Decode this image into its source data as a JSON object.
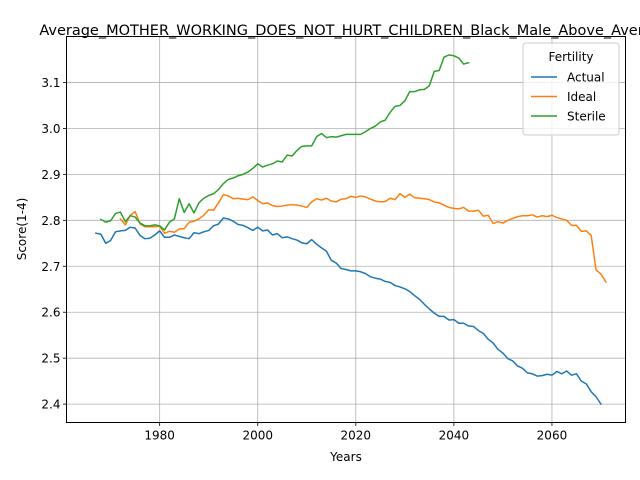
{
  "chart_data": {
    "type": "line",
    "title": "Average_MOTHER_WORKING_DOES_NOT_HURT_CHILDREN_Black_Male_Above_Average",
    "xlabel": "Years",
    "ylabel": "Score(1-4)",
    "xlim": [
      1961,
      2075
    ],
    "ylim": [
      2.36,
      3.2
    ],
    "xticks": [
      1980,
      2000,
      2020,
      2040,
      2060
    ],
    "yticks": [
      2.4,
      2.5,
      2.6,
      2.7,
      2.8,
      2.9,
      3.0,
      3.1
    ],
    "grid": true,
    "legend": {
      "title": "Fertility",
      "position": "top-right"
    },
    "series": [
      {
        "name": "Actual",
        "color": "#1f77b4",
        "points": [
          [
            1967,
            2.772
          ],
          [
            1968,
            2.77
          ],
          [
            1969,
            2.75
          ],
          [
            1970,
            2.756
          ],
          [
            1971,
            2.775
          ],
          [
            1972,
            2.777
          ],
          [
            1973,
            2.778
          ],
          [
            1974,
            2.785
          ],
          [
            1975,
            2.783
          ],
          [
            1976,
            2.767
          ],
          [
            1977,
            2.76
          ],
          [
            1978,
            2.761
          ],
          [
            1979,
            2.768
          ],
          [
            1980,
            2.777
          ],
          [
            1981,
            2.763
          ],
          [
            1982,
            2.763
          ],
          [
            1983,
            2.768
          ],
          [
            1984,
            2.765
          ],
          [
            1985,
            2.762
          ],
          [
            1986,
            2.76
          ],
          [
            1987,
            2.773
          ],
          [
            1988,
            2.771
          ],
          [
            1989,
            2.775
          ],
          [
            1990,
            2.778
          ],
          [
            1991,
            2.788
          ],
          [
            1992,
            2.792
          ],
          [
            1993,
            2.805
          ],
          [
            1994,
            2.803
          ],
          [
            1995,
            2.798
          ],
          [
            1996,
            2.791
          ],
          [
            1997,
            2.789
          ],
          [
            1998,
            2.784
          ],
          [
            1999,
            2.778
          ],
          [
            2000,
            2.785
          ],
          [
            2001,
            2.777
          ],
          [
            2002,
            2.779
          ],
          [
            2003,
            2.768
          ],
          [
            2004,
            2.771
          ],
          [
            2005,
            2.762
          ],
          [
            2006,
            2.764
          ],
          [
            2007,
            2.76
          ],
          [
            2008,
            2.757
          ],
          [
            2009,
            2.751
          ],
          [
            2010,
            2.749
          ],
          [
            2011,
            2.758
          ],
          [
            2012,
            2.748
          ],
          [
            2013,
            2.74
          ],
          [
            2014,
            2.733
          ],
          [
            2015,
            2.713
          ],
          [
            2016,
            2.707
          ],
          [
            2017,
            2.695
          ],
          [
            2018,
            2.693
          ],
          [
            2019,
            2.69
          ],
          [
            2020,
            2.69
          ],
          [
            2021,
            2.688
          ],
          [
            2022,
            2.684
          ],
          [
            2023,
            2.677
          ],
          [
            2024,
            2.674
          ],
          [
            2025,
            2.672
          ],
          [
            2026,
            2.667
          ],
          [
            2027,
            2.665
          ],
          [
            2028,
            2.658
          ],
          [
            2029,
            2.655
          ],
          [
            2030,
            2.651
          ],
          [
            2031,
            2.645
          ],
          [
            2032,
            2.636
          ],
          [
            2033,
            2.628
          ],
          [
            2034,
            2.617
          ],
          [
            2035,
            2.607
          ],
          [
            2036,
            2.598
          ],
          [
            2037,
            2.591
          ],
          [
            2038,
            2.591
          ],
          [
            2039,
            2.583
          ],
          [
            2040,
            2.584
          ],
          [
            2041,
            2.576
          ],
          [
            2042,
            2.576
          ],
          [
            2043,
            2.57
          ],
          [
            2044,
            2.569
          ],
          [
            2045,
            2.56
          ],
          [
            2046,
            2.554
          ],
          [
            2047,
            2.541
          ],
          [
            2048,
            2.533
          ],
          [
            2049,
            2.519
          ],
          [
            2050,
            2.511
          ],
          [
            2051,
            2.499
          ],
          [
            2052,
            2.494
          ],
          [
            2053,
            2.483
          ],
          [
            2054,
            2.478
          ],
          [
            2055,
            2.468
          ],
          [
            2056,
            2.466
          ],
          [
            2057,
            2.461
          ],
          [
            2058,
            2.462
          ],
          [
            2059,
            2.465
          ],
          [
            2060,
            2.463
          ],
          [
            2061,
            2.471
          ],
          [
            2062,
            2.466
          ],
          [
            2063,
            2.472
          ],
          [
            2064,
            2.463
          ],
          [
            2065,
            2.466
          ],
          [
            2066,
            2.45
          ],
          [
            2067,
            2.444
          ],
          [
            2068,
            2.427
          ],
          [
            2069,
            2.416
          ],
          [
            2070,
            2.4
          ]
        ]
      },
      {
        "name": "Ideal",
        "color": "#ff7f0e",
        "points": [
          [
            1972,
            2.803
          ],
          [
            1973,
            2.79
          ],
          [
            1974,
            2.811
          ],
          [
            1975,
            2.819
          ],
          [
            1976,
            2.792
          ],
          [
            1977,
            2.786
          ],
          [
            1978,
            2.786
          ],
          [
            1979,
            2.786
          ],
          [
            1980,
            2.787
          ],
          [
            1981,
            2.772
          ],
          [
            1982,
            2.776
          ],
          [
            1983,
            2.774
          ],
          [
            1984,
            2.781
          ],
          [
            1985,
            2.782
          ],
          [
            1986,
            2.796
          ],
          [
            1987,
            2.798
          ],
          [
            1988,
            2.803
          ],
          [
            1989,
            2.811
          ],
          [
            1990,
            2.823
          ],
          [
            1991,
            2.822
          ],
          [
            1992,
            2.838
          ],
          [
            1993,
            2.856
          ],
          [
            1994,
            2.853
          ],
          [
            1995,
            2.847
          ],
          [
            1996,
            2.848
          ],
          [
            1997,
            2.846
          ],
          [
            1998,
            2.845
          ],
          [
            1999,
            2.851
          ],
          [
            2000,
            2.843
          ],
          [
            2001,
            2.836
          ],
          [
            2002,
            2.838
          ],
          [
            2003,
            2.832
          ],
          [
            2004,
            2.83
          ],
          [
            2005,
            2.831
          ],
          [
            2006,
            2.833
          ],
          [
            2007,
            2.834
          ],
          [
            2008,
            2.833
          ],
          [
            2009,
            2.831
          ],
          [
            2010,
            2.828
          ],
          [
            2011,
            2.84
          ],
          [
            2012,
            2.847
          ],
          [
            2013,
            2.844
          ],
          [
            2014,
            2.848
          ],
          [
            2015,
            2.842
          ],
          [
            2016,
            2.84
          ],
          [
            2017,
            2.846
          ],
          [
            2018,
            2.847
          ],
          [
            2019,
            2.852
          ],
          [
            2020,
            2.85
          ],
          [
            2021,
            2.853
          ],
          [
            2022,
            2.851
          ],
          [
            2023,
            2.846
          ],
          [
            2024,
            2.842
          ],
          [
            2025,
            2.84
          ],
          [
            2026,
            2.841
          ],
          [
            2027,
            2.848
          ],
          [
            2028,
            2.845
          ],
          [
            2029,
            2.858
          ],
          [
            2030,
            2.85
          ],
          [
            2031,
            2.857
          ],
          [
            2032,
            2.849
          ],
          [
            2033,
            2.848
          ],
          [
            2034,
            2.847
          ],
          [
            2035,
            2.845
          ],
          [
            2036,
            2.84
          ],
          [
            2037,
            2.838
          ],
          [
            2038,
            2.833
          ],
          [
            2039,
            2.828
          ],
          [
            2040,
            2.826
          ],
          [
            2041,
            2.825
          ],
          [
            2042,
            2.828
          ],
          [
            2043,
            2.82
          ],
          [
            2044,
            2.82
          ],
          [
            2045,
            2.822
          ],
          [
            2046,
            2.809
          ],
          [
            2047,
            2.811
          ],
          [
            2048,
            2.793
          ],
          [
            2049,
            2.797
          ],
          [
            2050,
            2.794
          ],
          [
            2051,
            2.8
          ],
          [
            2052,
            2.804
          ],
          [
            2053,
            2.808
          ],
          [
            2054,
            2.81
          ],
          [
            2055,
            2.81
          ],
          [
            2056,
            2.812
          ],
          [
            2057,
            2.807
          ],
          [
            2058,
            2.81
          ],
          [
            2059,
            2.808
          ],
          [
            2060,
            2.811
          ],
          [
            2061,
            2.806
          ],
          [
            2062,
            2.803
          ],
          [
            2063,
            2.8
          ],
          [
            2064,
            2.789
          ],
          [
            2065,
            2.789
          ],
          [
            2066,
            2.776
          ],
          [
            2067,
            2.777
          ],
          [
            2068,
            2.767
          ],
          [
            2069,
            2.692
          ],
          [
            2070,
            2.683
          ],
          [
            2071,
            2.666
          ]
        ]
      },
      {
        "name": "Sterile",
        "color": "#2ca02c",
        "points": [
          [
            1968,
            2.802
          ],
          [
            1969,
            2.796
          ],
          [
            1970,
            2.799
          ],
          [
            1971,
            2.815
          ],
          [
            1972,
            2.818
          ],
          [
            1973,
            2.797
          ],
          [
            1974,
            2.81
          ],
          [
            1975,
            2.807
          ],
          [
            1976,
            2.794
          ],
          [
            1977,
            2.788
          ],
          [
            1978,
            2.788
          ],
          [
            1979,
            2.79
          ],
          [
            1980,
            2.788
          ],
          [
            1981,
            2.779
          ],
          [
            1982,
            2.796
          ],
          [
            1983,
            2.803
          ],
          [
            1984,
            2.847
          ],
          [
            1985,
            2.817
          ],
          [
            1986,
            2.836
          ],
          [
            1987,
            2.816
          ],
          [
            1988,
            2.838
          ],
          [
            1989,
            2.848
          ],
          [
            1990,
            2.854
          ],
          [
            1991,
            2.858
          ],
          [
            1992,
            2.867
          ],
          [
            1993,
            2.88
          ],
          [
            1994,
            2.889
          ],
          [
            1995,
            2.892
          ],
          [
            1996,
            2.897
          ],
          [
            1997,
            2.9
          ],
          [
            1998,
            2.905
          ],
          [
            1999,
            2.913
          ],
          [
            2000,
            2.923
          ],
          [
            2001,
            2.916
          ],
          [
            2002,
            2.92
          ],
          [
            2003,
            2.923
          ],
          [
            2004,
            2.929
          ],
          [
            2005,
            2.927
          ],
          [
            2006,
            2.942
          ],
          [
            2007,
            2.94
          ],
          [
            2008,
            2.952
          ],
          [
            2009,
            2.961
          ],
          [
            2010,
            2.962
          ],
          [
            2011,
            2.962
          ],
          [
            2012,
            2.982
          ],
          [
            2013,
            2.989
          ],
          [
            2014,
            2.98
          ],
          [
            2015,
            2.982
          ],
          [
            2016,
            2.981
          ],
          [
            2017,
            2.984
          ],
          [
            2018,
            2.987
          ],
          [
            2019,
            2.987
          ],
          [
            2020,
            2.987
          ],
          [
            2021,
            2.987
          ],
          [
            2022,
            2.993
          ],
          [
            2023,
            3.0
          ],
          [
            2024,
            3.005
          ],
          [
            2025,
            3.014
          ],
          [
            2026,
            3.018
          ],
          [
            2027,
            3.035
          ],
          [
            2028,
            3.048
          ],
          [
            2029,
            3.05
          ],
          [
            2030,
            3.06
          ],
          [
            2031,
            3.08
          ],
          [
            2032,
            3.08
          ],
          [
            2033,
            3.084
          ],
          [
            2034,
            3.085
          ],
          [
            2035,
            3.093
          ],
          [
            2036,
            3.124
          ],
          [
            2037,
            3.126
          ],
          [
            2038,
            3.155
          ],
          [
            2039,
            3.16
          ],
          [
            2040,
            3.158
          ],
          [
            2041,
            3.153
          ],
          [
            2042,
            3.14
          ],
          [
            2043,
            3.143
          ]
        ]
      }
    ]
  }
}
